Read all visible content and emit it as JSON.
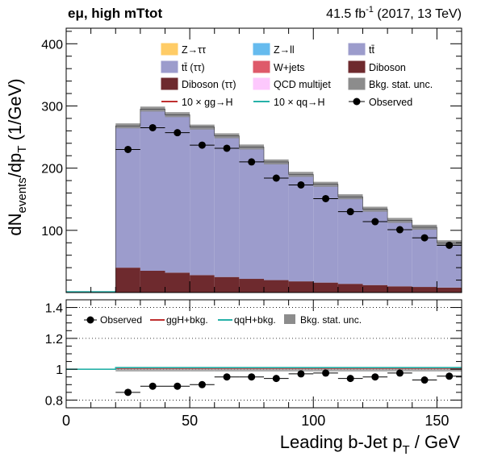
{
  "header": {
    "channel": "eμ, high mTtot",
    "lumi_value": "41.5 fb",
    "lumi_exp": "-1",
    "lumi_rest": " (2017, 13 TeV)"
  },
  "chart_data": {
    "type": "bar",
    "stacked": true,
    "x_edges": [
      0,
      20,
      30,
      40,
      50,
      60,
      70,
      80,
      90,
      100,
      110,
      120,
      130,
      140,
      150,
      160
    ],
    "xlabel": "Leading b-Jet p_T / GeV",
    "xlim": [
      0,
      160
    ],
    "x_ticks": [
      0,
      50,
      100,
      150
    ],
    "ylabel": "dN_events/dp_T  (1/GeV)",
    "ylim": [
      0,
      425
    ],
    "y_ticks": [
      100,
      200,
      300,
      400
    ],
    "series": [
      {
        "name": "Diboson",
        "color": "#6e2a2e",
        "values": [
          0,
          40,
          35,
          32,
          28,
          25,
          22,
          20,
          18,
          16,
          14,
          12,
          10,
          9,
          8
        ]
      },
      {
        "name": "tt̄",
        "color": "#9c9ccc",
        "values": [
          0,
          228,
          260,
          254,
          238,
          227,
          212,
          190,
          172,
          158,
          140,
          122,
          106,
          96,
          72
        ]
      }
    ],
    "stat_unc_band": {
      "name": "Bkg. stat. unc.",
      "color": "#8c8c8c",
      "half_width": [
        0,
        4,
        4,
        4,
        4,
        4,
        4,
        4,
        4,
        4,
        4,
        4,
        4,
        4,
        4
      ]
    },
    "observed": {
      "name": "Observed",
      "x": [
        25,
        35,
        45,
        55,
        65,
        75,
        85,
        95,
        105,
        115,
        125,
        135,
        145,
        155
      ],
      "y": [
        230,
        265,
        257,
        237,
        232,
        210,
        184,
        173,
        151,
        130,
        114,
        101,
        88,
        76
      ]
    },
    "legend": [
      {
        "label": "Z→ττ",
        "color": "#ffcc66",
        "kind": "box"
      },
      {
        "label": "Z→ll",
        "color": "#66bbee",
        "kind": "box"
      },
      {
        "label": "tt̄",
        "color": "#9c9ccc",
        "kind": "box"
      },
      {
        "label": "tt̄ (ττ)",
        "color": "#9c9ccc",
        "kind": "box"
      },
      {
        "label": "W+jets",
        "color": "#de5a6a",
        "kind": "box"
      },
      {
        "label": "Diboson",
        "color": "#6e2a2e",
        "kind": "box"
      },
      {
        "label": "Diboson (ττ)",
        "color": "#6e2a2e",
        "kind": "box"
      },
      {
        "label": "QCD multijet",
        "color": "#fdc8fd",
        "kind": "box"
      },
      {
        "label": "Bkg. stat. unc.",
        "color": "#8c8c8c",
        "kind": "box"
      },
      {
        "label": "10 × gg→H",
        "color": "#bf2f2f",
        "kind": "line"
      },
      {
        "label": "10 × qq→H",
        "color": "#26b1a8",
        "kind": "line"
      },
      {
        "label": "Observed",
        "color": "#000000",
        "kind": "marker"
      }
    ],
    "ratio": {
      "ylim": [
        0.75,
        1.45
      ],
      "y_ticks": [
        0.8,
        1,
        1.2,
        1.4
      ],
      "y_tick_labels": [
        "0.8",
        "1",
        "1.2",
        "1.4"
      ],
      "gridlines": [
        0.8,
        1,
        1.2,
        1.4
      ],
      "observed_x": [
        25,
        35,
        45,
        55,
        65,
        75,
        85,
        95,
        105,
        115,
        125,
        135,
        145,
        155
      ],
      "observed_y": [
        0.85,
        0.89,
        0.89,
        0.9,
        0.95,
        0.95,
        0.94,
        0.97,
        0.975,
        0.94,
        0.95,
        0.975,
        0.93,
        0.955
      ],
      "ggh_bkg": [
        1.0,
        1.005,
        1.005,
        1.005,
        1.005,
        1.005,
        1.005,
        1.005,
        1.005,
        1.005,
        1.005,
        1.005,
        1.005,
        1.005,
        1.005
      ],
      "qqh_bkg": [
        1.0,
        1.01,
        1.01,
        1.01,
        1.01,
        1.01,
        1.01,
        1.01,
        1.01,
        1.01,
        1.01,
        1.01,
        1.01,
        1.01,
        1.01
      ],
      "legend": [
        {
          "label": "Observed",
          "color": "#000000",
          "kind": "marker"
        },
        {
          "label": "ggH+bkg.",
          "color": "#bf2f2f",
          "kind": "line"
        },
        {
          "label": "qqH+bkg.",
          "color": "#26b1a8",
          "kind": "line"
        },
        {
          "label": "Bkg. stat. unc.",
          "color": "#8c8c8c",
          "kind": "box"
        }
      ]
    }
  }
}
